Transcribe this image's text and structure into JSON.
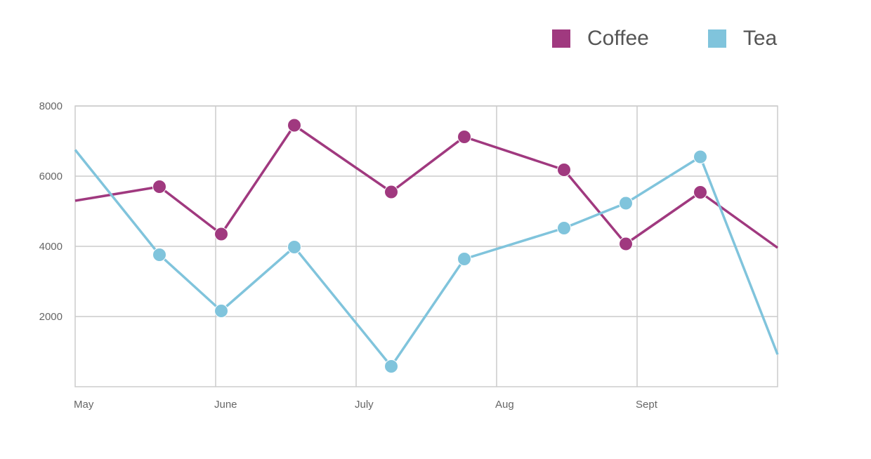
{
  "chart_data": {
    "type": "line",
    "x_ticks": [
      "May",
      "June",
      "July",
      "Aug",
      "Sept"
    ],
    "y_ticks": [
      "8000",
      "6000",
      "4000",
      "2000"
    ],
    "ylim": [
      0,
      8000
    ],
    "xlim": [
      0,
      5
    ],
    "grid": true,
    "legend_position": "top-right",
    "series": [
      {
        "name": "Coffee",
        "color": "#a0397f",
        "x": [
          0,
          0.6,
          1.04,
          1.56,
          2.25,
          2.77,
          3.48,
          3.92,
          4.45,
          5.0
        ],
        "y": [
          5300,
          5700,
          4350,
          7450,
          5550,
          7120,
          6180,
          4070,
          5540,
          3960
        ],
        "markers": [
          false,
          true,
          true,
          true,
          true,
          true,
          true,
          true,
          true,
          false
        ]
      },
      {
        "name": "Tea",
        "color": "#80c4dc",
        "x": [
          0,
          0.6,
          1.04,
          1.56,
          2.25,
          2.77,
          3.48,
          3.92,
          4.45,
          5.0
        ],
        "y": [
          6750,
          3760,
          2160,
          3980,
          580,
          3640,
          4520,
          5230,
          6550,
          920
        ],
        "markers": [
          false,
          true,
          true,
          true,
          true,
          true,
          true,
          true,
          true,
          false
        ]
      }
    ]
  }
}
